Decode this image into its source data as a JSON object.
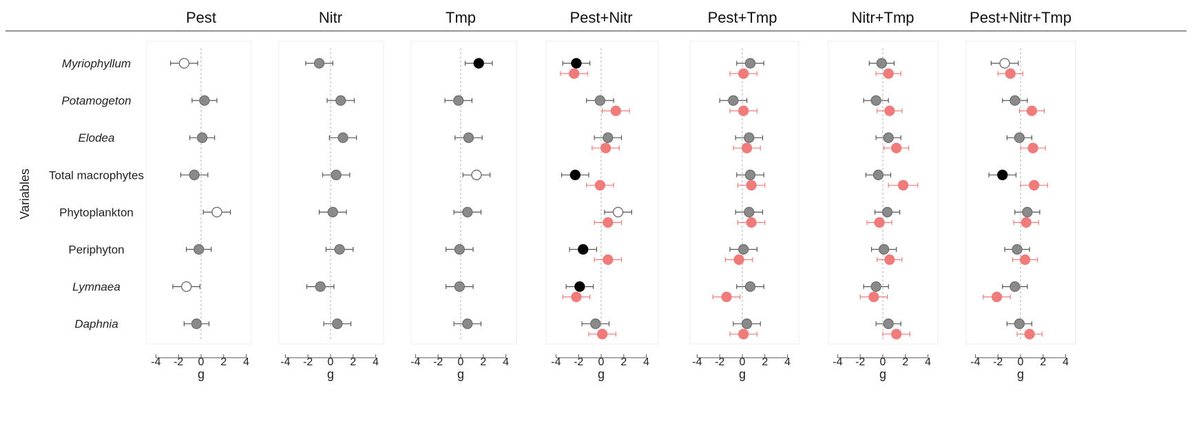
{
  "chart_data": {
    "type": "scatter",
    "subtype": "forest-plot",
    "ylabel": "Variables",
    "xlabel": "g",
    "xlim": [
      -4.5,
      4.5
    ],
    "xticks": [
      -4,
      -2,
      0,
      2,
      4
    ],
    "tick_labels": [
      "-4",
      "-2",
      "0",
      "2",
      "4"
    ],
    "reference_line": 0,
    "colors": {
      "gray": "#8a8a8a",
      "black": "#000000",
      "open": "#ffffff",
      "red": "#f07b7b",
      "axis": "#555555"
    },
    "variables": [
      {
        "label": "Myriophyllum",
        "italic": true
      },
      {
        "label": "Potamogeton",
        "italic": true
      },
      {
        "label": "Elodea",
        "italic": true
      },
      {
        "label": "Total macrophytes",
        "italic": false
      },
      {
        "label": "Phytoplankton",
        "italic": false
      },
      {
        "label": "Periphyton",
        "italic": false
      },
      {
        "label": "Lymnaea",
        "italic": true
      },
      {
        "label": "Daphnia",
        "italic": true
      }
    ],
    "panels": [
      {
        "title": "Pest",
        "series": [
          {
            "color": "gray",
            "style": "open",
            "values": [
              -1.5,
              0.3,
              0.1,
              -0.6,
              1.4,
              -0.2,
              -1.3,
              -0.4
            ],
            "low": [
              -2.7,
              -0.8,
              -1.0,
              -1.8,
              0.2,
              -1.3,
              -2.5,
              -1.5
            ],
            "high": [
              -0.3,
              1.4,
              1.2,
              0.6,
              2.6,
              0.9,
              -0.1,
              0.7
            ],
            "styles": [
              "open",
              "filled",
              "filled",
              "filled",
              "open",
              "filled",
              "open",
              "filled"
            ]
          }
        ]
      },
      {
        "title": "Nitr",
        "series": [
          {
            "color": "gray",
            "values": [
              -1.0,
              0.9,
              1.1,
              0.5,
              0.2,
              0.8,
              -0.9,
              0.6
            ],
            "low": [
              -2.2,
              -0.3,
              -0.1,
              -0.7,
              -1.0,
              -0.4,
              -2.1,
              -0.6
            ],
            "high": [
              0.2,
              2.1,
              2.3,
              1.7,
              1.4,
              2.0,
              0.3,
              1.8
            ],
            "styles": [
              "filled",
              "filled",
              "filled",
              "filled",
              "filled",
              "filled",
              "filled",
              "filled"
            ]
          }
        ]
      },
      {
        "title": "Tmp",
        "series": [
          {
            "color": "gray",
            "values": [
              1.6,
              -0.2,
              0.7,
              1.4,
              0.6,
              -0.1,
              -0.1,
              0.6
            ],
            "low": [
              0.4,
              -1.4,
              -0.5,
              0.2,
              -0.6,
              -1.3,
              -1.3,
              -0.6
            ],
            "high": [
              2.8,
              1.0,
              1.9,
              2.6,
              1.8,
              1.1,
              1.1,
              1.8
            ],
            "styles": [
              "black",
              "filled",
              "filled",
              "open",
              "filled",
              "filled",
              "filled",
              "filled"
            ]
          }
        ]
      },
      {
        "title": "Pest+Nitr",
        "series": [
          {
            "color": "gray",
            "values": [
              -2.2,
              -0.1,
              0.6,
              -2.3,
              1.5,
              -1.6,
              -1.9,
              -0.5
            ],
            "low": [
              -3.4,
              -1.3,
              -0.6,
              -3.5,
              0.3,
              -2.8,
              -3.1,
              -1.7
            ],
            "high": [
              -1.0,
              1.1,
              1.8,
              -1.1,
              2.7,
              -0.4,
              -0.7,
              0.7
            ],
            "styles": [
              "black",
              "filled",
              "filled",
              "black",
              "open",
              "black",
              "black",
              "filled"
            ]
          },
          {
            "color": "red",
            "values": [
              -2.4,
              1.3,
              0.4,
              -0.1,
              0.6,
              0.6,
              -2.2,
              0.1
            ],
            "low": [
              -3.6,
              0.1,
              -0.8,
              -1.3,
              -0.6,
              -0.6,
              -3.4,
              -1.1
            ],
            "high": [
              -1.2,
              2.5,
              1.6,
              1.1,
              1.8,
              1.8,
              -1.0,
              1.3
            ],
            "styles": [
              "filled",
              "filled",
              "filled",
              "filled",
              "filled",
              "filled",
              "filled",
              "filled"
            ]
          }
        ]
      },
      {
        "title": "Pest+Tmp",
        "series": [
          {
            "color": "gray",
            "values": [
              0.7,
              -0.8,
              0.6,
              0.7,
              0.6,
              0.1,
              0.7,
              0.4
            ],
            "low": [
              -0.5,
              -2.0,
              -0.6,
              -0.5,
              -0.6,
              -1.1,
              -0.5,
              -0.8
            ],
            "high": [
              1.9,
              0.4,
              1.8,
              1.9,
              1.8,
              1.3,
              1.9,
              1.6
            ],
            "styles": [
              "filled",
              "filled",
              "filled",
              "filled",
              "filled",
              "filled",
              "filled",
              "filled"
            ]
          },
          {
            "color": "red",
            "values": [
              0.1,
              0.1,
              0.4,
              0.8,
              0.8,
              -0.3,
              -1.4,
              0.1
            ],
            "low": [
              -1.1,
              -1.1,
              -0.8,
              -0.4,
              -0.4,
              -1.5,
              -2.6,
              -1.1
            ],
            "high": [
              1.3,
              1.3,
              1.6,
              2.0,
              2.0,
              0.9,
              -0.2,
              1.3
            ],
            "styles": [
              "filled",
              "filled",
              "filled",
              "filled",
              "filled",
              "filled",
              "filled",
              "filled"
            ]
          }
        ]
      },
      {
        "title": "Nitr+Tmp",
        "series": [
          {
            "color": "gray",
            "values": [
              -0.1,
              -0.6,
              0.5,
              -0.4,
              0.4,
              0.1,
              -0.6,
              0.5
            ],
            "low": [
              -1.2,
              -1.7,
              -0.6,
              -1.5,
              -0.7,
              -1.0,
              -1.7,
              -0.6
            ],
            "high": [
              1.0,
              0.5,
              1.6,
              0.7,
              1.5,
              1.2,
              0.5,
              1.6
            ],
            "styles": [
              "filled",
              "filled",
              "filled",
              "filled",
              "filled",
              "filled",
              "filled",
              "filled"
            ]
          },
          {
            "color": "red",
            "values": [
              0.5,
              0.6,
              1.2,
              1.8,
              -0.3,
              0.6,
              -0.8,
              1.2
            ],
            "low": [
              -0.6,
              -0.5,
              0.1,
              0.5,
              -1.4,
              -0.5,
              -2.0,
              0.0
            ],
            "high": [
              1.6,
              1.7,
              2.3,
              3.1,
              0.8,
              1.7,
              0.4,
              2.4
            ],
            "styles": [
              "filled",
              "filled",
              "filled",
              "filled",
              "filled",
              "filled",
              "filled",
              "filled"
            ]
          }
        ]
      },
      {
        "title": "Pest+Nitr+Tmp",
        "series": [
          {
            "color": "gray",
            "values": [
              -1.4,
              -0.5,
              -0.1,
              -1.6,
              0.6,
              -0.3,
              -0.5,
              -0.1
            ],
            "low": [
              -2.6,
              -1.6,
              -1.2,
              -2.8,
              -0.5,
              -1.4,
              -1.6,
              -1.2
            ],
            "high": [
              -0.2,
              0.6,
              1.0,
              -0.4,
              1.7,
              0.8,
              0.6,
              1.0
            ],
            "styles": [
              "open",
              "filled",
              "filled",
              "black",
              "filled",
              "filled",
              "filled",
              "filled"
            ]
          },
          {
            "color": "red",
            "values": [
              -0.9,
              1.0,
              1.1,
              1.2,
              0.5,
              0.4,
              -2.1,
              0.8
            ],
            "low": [
              -2.0,
              -0.1,
              0.0,
              0.0,
              -0.6,
              -0.7,
              -3.3,
              -0.3
            ],
            "high": [
              0.2,
              2.1,
              2.2,
              2.4,
              1.6,
              1.5,
              -0.9,
              1.9
            ],
            "styles": [
              "filled",
              "filled",
              "filled",
              "filled",
              "filled",
              "filled",
              "filled",
              "filled"
            ]
          }
        ]
      }
    ]
  }
}
